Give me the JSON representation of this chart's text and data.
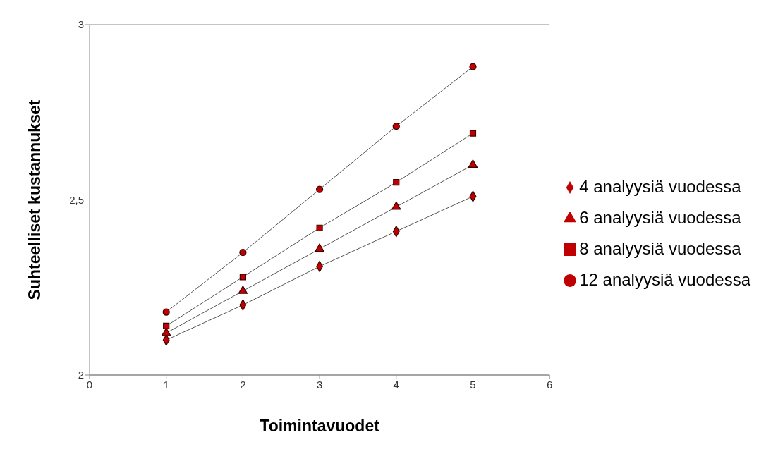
{
  "chart_data": {
    "type": "line",
    "xlabel": "Toimintavuodet",
    "ylabel": "Suhteelliset kustannukset",
    "x": [
      1,
      2,
      3,
      4,
      5
    ],
    "series": [
      {
        "name": "4 analyysiä vuodessa",
        "color": "#c00000",
        "marker": "diamond",
        "values": [
          2.1,
          2.2,
          2.31,
          2.41,
          2.51
        ]
      },
      {
        "name": "6 analyysiä vuodessa",
        "color": "#c00000",
        "marker": "triangle",
        "values": [
          2.12,
          2.24,
          2.36,
          2.48,
          2.6
        ]
      },
      {
        "name": "8 analyysiä vuodessa",
        "color": "#c00000",
        "marker": "square",
        "values": [
          2.14,
          2.28,
          2.42,
          2.55,
          2.69
        ]
      },
      {
        "name": "12 analyysiä vuodessa",
        "color": "#c00000",
        "marker": "circle",
        "values": [
          2.18,
          2.35,
          2.53,
          2.71,
          2.88
        ]
      }
    ],
    "xlim": [
      0,
      6
    ],
    "xticks": [
      0,
      1,
      2,
      3,
      4,
      5,
      6
    ],
    "ylim": [
      2,
      3
    ],
    "yticks": [
      {
        "value": 2,
        "label": "2"
      },
      {
        "value": 2.5,
        "label": "2,5"
      },
      {
        "value": 3,
        "label": "3"
      }
    ],
    "grid": "y",
    "legend": "right",
    "line_style": "solid"
  }
}
